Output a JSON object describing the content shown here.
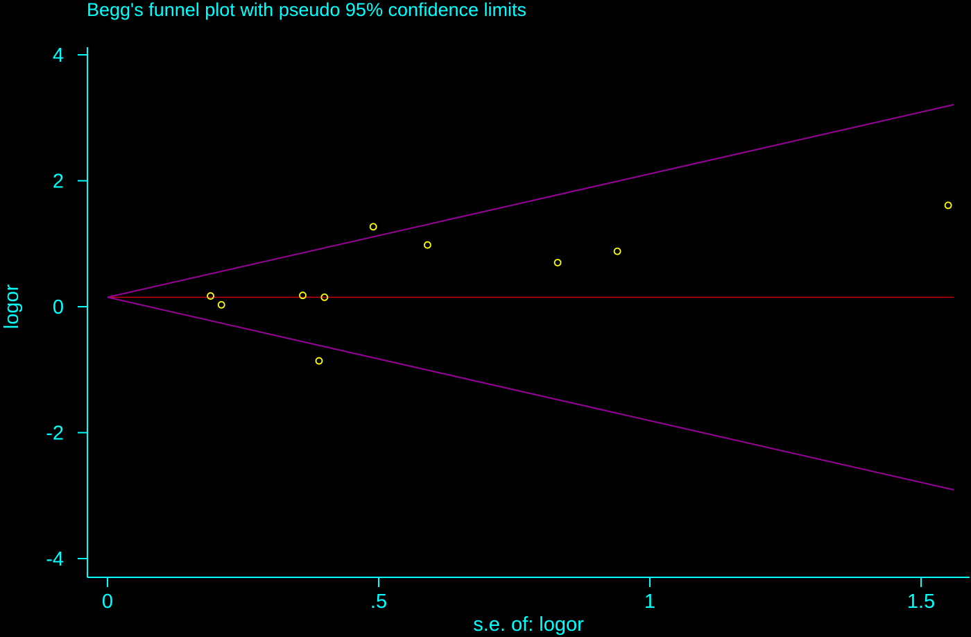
{
  "chart_data": {
    "type": "scatter",
    "title": "Begg's funnel plot with pseudo 95% confidence limits",
    "xlabel": "s.e. of: logor",
    "ylabel": "logor",
    "xlim": [
      0,
      1.6
    ],
    "ylim": [
      -4,
      4
    ],
    "x_ticks": [
      {
        "value": 0,
        "label": "0"
      },
      {
        "value": 0.5,
        "label": ".5"
      },
      {
        "value": 1,
        "label": "1"
      },
      {
        "value": 1.5,
        "label": "1.5"
      }
    ],
    "y_ticks": [
      {
        "value": 4,
        "label": "4"
      },
      {
        "value": 2,
        "label": "2"
      },
      {
        "value": 0,
        "label": "0"
      },
      {
        "value": -2,
        "label": "-2"
      },
      {
        "value": -4,
        "label": "-4"
      }
    ],
    "pooled_estimate": 0.15,
    "pseudo_ci_multiplier": 1.96,
    "se_max": 1.56,
    "points": [
      {
        "x": 0.19,
        "y": 0.17
      },
      {
        "x": 0.21,
        "y": 0.03
      },
      {
        "x": 0.36,
        "y": 0.18
      },
      {
        "x": 0.39,
        "y": -0.86
      },
      {
        "x": 0.4,
        "y": 0.15
      },
      {
        "x": 0.49,
        "y": 1.27
      },
      {
        "x": 0.59,
        "y": 0.98
      },
      {
        "x": 0.83,
        "y": 0.7
      },
      {
        "x": 0.94,
        "y": 0.88
      },
      {
        "x": 1.55,
        "y": 1.61
      }
    ],
    "colors": {
      "background": "#000000",
      "axis": "#00ffff",
      "text": "#00ffff",
      "points": "#ffff00",
      "pooled_line": "#cc0000",
      "ci_lines": "#990099"
    },
    "grid": false,
    "legend": "none"
  }
}
